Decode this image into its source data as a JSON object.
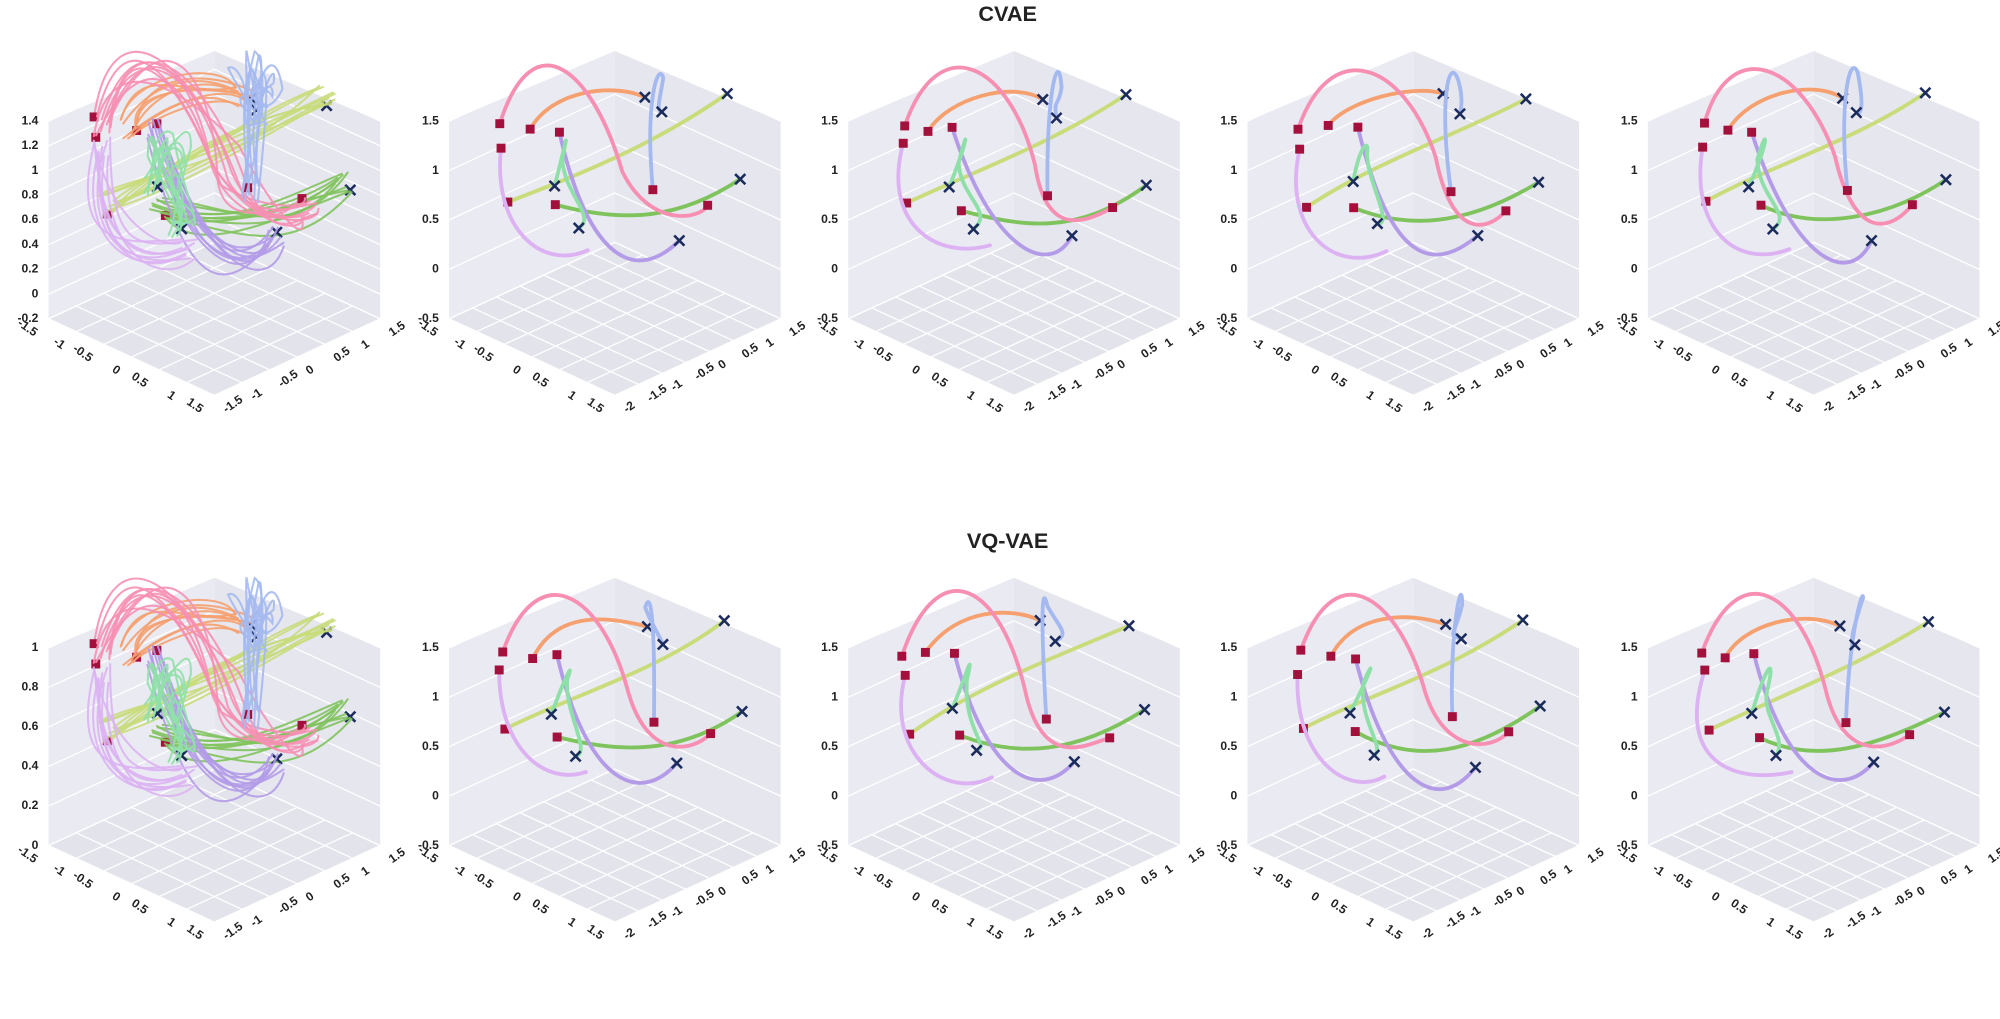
{
  "rows": [
    {
      "title": "CVAE",
      "panels": [
        {
          "zticks": [
            -0.2,
            0,
            0.2,
            0.4,
            0.6,
            0.8,
            1,
            1.2,
            1.4
          ],
          "zlim": [
            -0.2,
            1.4
          ],
          "xticks": [
            -1.5,
            -1,
            -0.5,
            0,
            0.5,
            1,
            1.5
          ],
          "xlim": [
            -1.5,
            1.5
          ],
          "yticks": [
            -1.5,
            -1,
            -0.5,
            0,
            0.5,
            1,
            1.5
          ],
          "ylim": [
            -1.5,
            1.5
          ]
        },
        {
          "zticks": [
            -0.5,
            0,
            0.5,
            1,
            1.5
          ],
          "zlim": [
            -0.5,
            1.5
          ],
          "xticks": [
            -1.5,
            -1,
            -0.5,
            0,
            0.5,
            1,
            1.5
          ],
          "xlim": [
            -1.5,
            1.5
          ],
          "yticks": [
            -2,
            -1.5,
            -1,
            -0.5,
            0,
            0.5,
            1,
            1.5
          ],
          "ylim": [
            -2,
            1.5
          ]
        },
        {
          "zticks": [
            -0.5,
            0,
            0.5,
            1,
            1.5
          ],
          "zlim": [
            -0.5,
            1.5
          ],
          "xticks": [
            -1.5,
            -1,
            -0.5,
            0,
            0.5,
            1,
            1.5
          ],
          "xlim": [
            -1.5,
            1.5
          ],
          "yticks": [
            -2,
            -1.5,
            -1,
            -0.5,
            0,
            0.5,
            1,
            1.5
          ],
          "ylim": [
            -2,
            1.5
          ]
        },
        {
          "zticks": [
            -0.5,
            0,
            0.5,
            1,
            1.5
          ],
          "zlim": [
            -0.5,
            1.5
          ],
          "xticks": [
            -1.5,
            -1,
            -0.5,
            0,
            0.5,
            1,
            1.5
          ],
          "xlim": [
            -1.5,
            1.5
          ],
          "yticks": [
            -2,
            -1.5,
            -1,
            -0.5,
            0,
            0.5,
            1,
            1.5
          ],
          "ylim": [
            -2,
            1.5
          ]
        },
        {
          "zticks": [
            -0.5,
            0,
            0.5,
            1,
            1.5
          ],
          "zlim": [
            -0.5,
            1.5
          ],
          "xticks": [
            -1.5,
            -1,
            -0.5,
            0,
            0.5,
            1,
            1.5
          ],
          "xlim": [
            -1.5,
            1.5
          ],
          "yticks": [
            -2,
            -1.5,
            -1,
            -0.5,
            0,
            0.5,
            1,
            1.5
          ],
          "ylim": [
            -2,
            1.5
          ]
        }
      ]
    },
    {
      "title": "VQ-VAE",
      "panels": [
        {
          "zticks": [
            0,
            0.2,
            0.4,
            0.6,
            0.8,
            1
          ],
          "zlim": [
            0,
            1
          ],
          "xticks": [
            -1.5,
            -1,
            -0.5,
            0,
            0.5,
            1,
            1.5
          ],
          "xlim": [
            -1.5,
            1.5
          ],
          "yticks": [
            -1.5,
            -1,
            -0.5,
            0,
            0.5,
            1,
            1.5
          ],
          "ylim": [
            -1.5,
            1.5
          ]
        },
        {
          "zticks": [
            -0.5,
            0,
            0.5,
            1,
            1.5
          ],
          "zlim": [
            -0.5,
            1.5
          ],
          "xticks": [
            -1.5,
            -1,
            -0.5,
            0,
            0.5,
            1,
            1.5
          ],
          "xlim": [
            -1.5,
            1.5
          ],
          "yticks": [
            -2,
            -1.5,
            -1,
            -0.5,
            0,
            0.5,
            1,
            1.5
          ],
          "ylim": [
            -2,
            1.5
          ]
        },
        {
          "zticks": [
            -0.5,
            0,
            0.5,
            1,
            1.5
          ],
          "zlim": [
            -0.5,
            1.5
          ],
          "xticks": [
            -1.5,
            -1,
            -0.5,
            0,
            0.5,
            1,
            1.5
          ],
          "xlim": [
            -1.5,
            1.5
          ],
          "yticks": [
            -2,
            -1.5,
            -1,
            -0.5,
            0,
            0.5,
            1,
            1.5
          ],
          "ylim": [
            -2,
            1.5
          ]
        },
        {
          "zticks": [
            -0.5,
            0,
            0.5,
            1,
            1.5
          ],
          "zlim": [
            -0.5,
            1.5
          ],
          "xticks": [
            -1.5,
            -1,
            -0.5,
            0,
            0.5,
            1,
            1.5
          ],
          "xlim": [
            -1.5,
            1.5
          ],
          "yticks": [
            -2,
            -1.5,
            -1,
            -0.5,
            0,
            0.5,
            1,
            1.5
          ],
          "ylim": [
            -2,
            1.5
          ]
        },
        {
          "zticks": [
            -0.5,
            0,
            0.5,
            1,
            1.5
          ],
          "zlim": [
            -0.5,
            1.5
          ],
          "xticks": [
            -1.5,
            -1,
            -0.5,
            0,
            0.5,
            1,
            1.5
          ],
          "xlim": [
            -1.5,
            1.5
          ],
          "yticks": [
            -2,
            -1.5,
            -1,
            -0.5,
            0,
            0.5,
            1,
            1.5
          ],
          "ylim": [
            -2,
            1.5
          ]
        }
      ]
    }
  ]
}
